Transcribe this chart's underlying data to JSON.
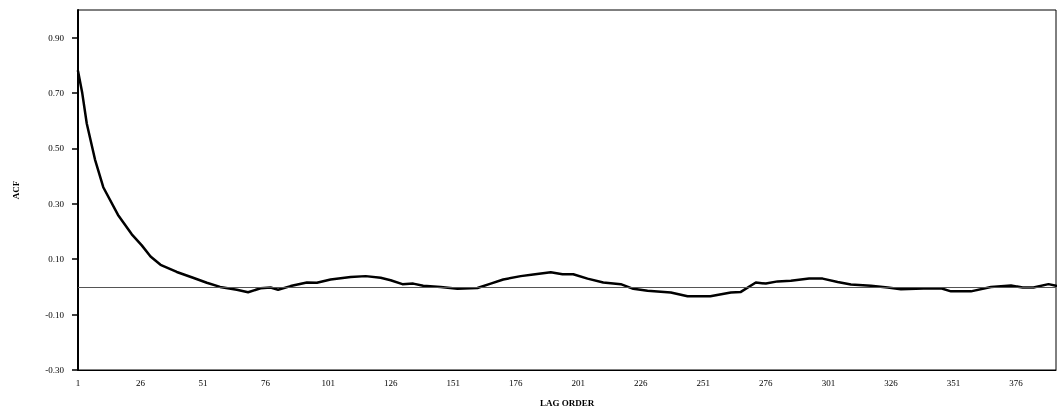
{
  "chart_data": {
    "type": "line",
    "xlabel": "LAG ORDER",
    "ylabel": "ACF",
    "x": [
      1,
      2.7,
      4.5,
      7.8,
      11.1,
      17,
      22.5,
      26.5,
      30,
      34,
      40.5,
      47,
      52.5,
      57.8,
      64.5,
      69,
      74,
      78,
      81,
      86,
      92.5,
      96.5,
      102,
      110,
      116,
      122,
      126,
      130.7,
      135,
      139,
      146,
      152.7,
      160.7,
      166,
      171,
      178,
      183,
      190,
      194.7,
      199,
      204.7,
      211,
      218,
      223,
      228.7,
      238,
      244.7,
      253.8,
      262,
      266,
      272,
      276,
      280.7,
      286,
      293.3,
      298.7,
      304.7,
      310,
      318,
      324.7,
      330,
      339,
      346,
      350,
      358,
      366,
      374,
      378.7,
      383,
      389,
      392
    ],
    "series": [
      {
        "color": "#000000",
        "values": [
          0.78,
          0.7,
          0.59,
          0.46,
          0.36,
          0.26,
          0.19,
          0.15,
          0.11,
          0.08,
          0.054,
          0.033,
          0.015,
          0.0,
          -0.01,
          -0.019,
          -0.005,
          -0.002,
          -0.01,
          0.003,
          0.016,
          0.015,
          0.027,
          0.036,
          0.039,
          0.033,
          0.024,
          0.01,
          0.012,
          0.004,
          0.0,
          -0.007,
          -0.004,
          0.012,
          0.027,
          0.039,
          0.045,
          0.053,
          0.046,
          0.046,
          0.03,
          0.016,
          0.01,
          -0.007,
          -0.014,
          -0.02,
          -0.034,
          -0.034,
          -0.02,
          -0.018,
          0.016,
          0.012,
          0.02,
          0.022,
          0.03,
          0.03,
          0.018,
          0.009,
          0.004,
          -0.002,
          -0.008,
          -0.006,
          -0.005,
          -0.016,
          -0.016,
          0.0,
          0.005,
          -0.002,
          -0.002,
          0.01,
          0.004
        ]
      }
    ],
    "xlim": [
      1,
      392
    ],
    "xticks": [
      1,
      26,
      51,
      76,
      101,
      126,
      151,
      176,
      201,
      226,
      251,
      276,
      301,
      326,
      351,
      376
    ],
    "ylim": [
      -0.3,
      1.0
    ],
    "yticks": [
      {
        "value": -0.3,
        "label": "-0.30"
      },
      {
        "value": -0.1,
        "label": "-0.10"
      },
      {
        "value": 0.1,
        "label": "0.10"
      },
      {
        "value": 0.3,
        "label": "0.30"
      },
      {
        "value": 0.5,
        "label": "0.50"
      },
      {
        "value": 0.7,
        "label": "0.70"
      },
      {
        "value": 0.9,
        "label": "0.90"
      }
    ],
    "ref_lines": [
      {
        "axis": "y",
        "value": 0,
        "color": "#555555"
      }
    ],
    "grid": false,
    "marker": "none",
    "line_style": "solid"
  }
}
